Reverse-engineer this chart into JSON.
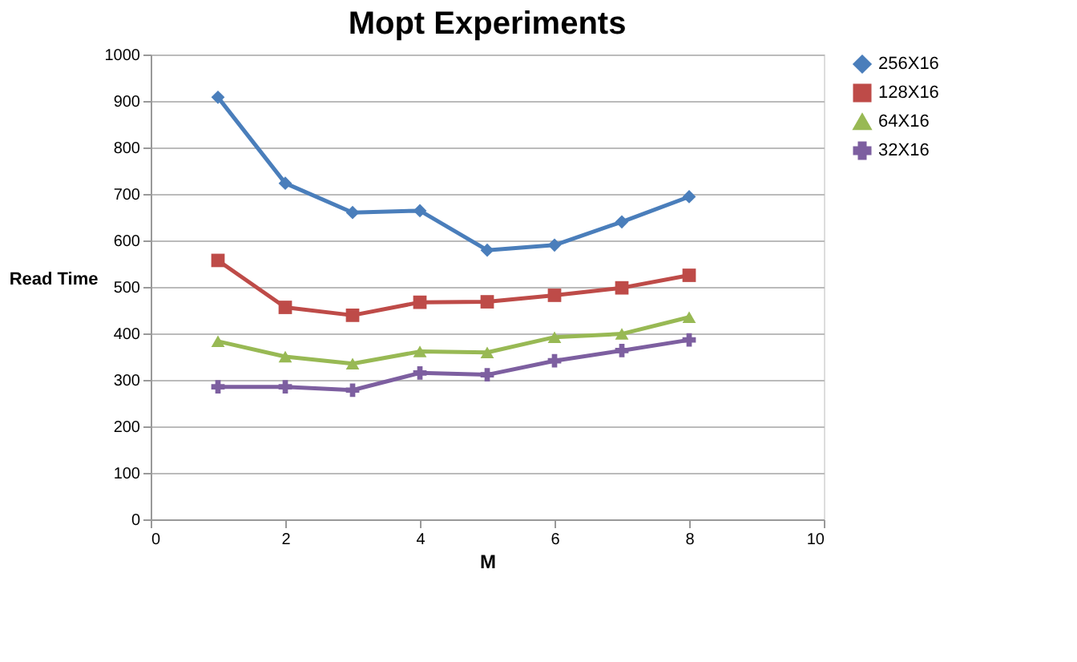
{
  "chart_data": {
    "type": "line",
    "title": "Mopt Experiments",
    "xlabel": "M",
    "ylabel": "Read Time",
    "x": [
      1,
      2,
      3,
      4,
      5,
      6,
      7,
      8
    ],
    "xlim": [
      0,
      10
    ],
    "xticks": [
      0,
      2,
      4,
      6,
      8,
      10
    ],
    "ylim": [
      0,
      1000
    ],
    "yticks": [
      0,
      100,
      200,
      300,
      400,
      500,
      600,
      700,
      800,
      900,
      1000
    ],
    "grid": "y",
    "legend": "right",
    "series": [
      {
        "name": "256X16",
        "color": "#4a7ebb",
        "marker": "diamond",
        "values": [
          908,
          723,
          660,
          664,
          579,
          590,
          640,
          694
        ]
      },
      {
        "name": "128X16",
        "color": "#be4b48",
        "marker": "square",
        "values": [
          557,
          456,
          439,
          467,
          468,
          482,
          498,
          525
        ]
      },
      {
        "name": "64X16",
        "color": "#98b954",
        "marker": "triangle",
        "values": [
          383,
          350,
          335,
          361,
          359,
          392,
          399,
          435
        ]
      },
      {
        "name": "32X16",
        "color": "#7d5fa0",
        "marker": "cross",
        "values": [
          285,
          285,
          278,
          315,
          311,
          341,
          363,
          386
        ]
      }
    ]
  }
}
